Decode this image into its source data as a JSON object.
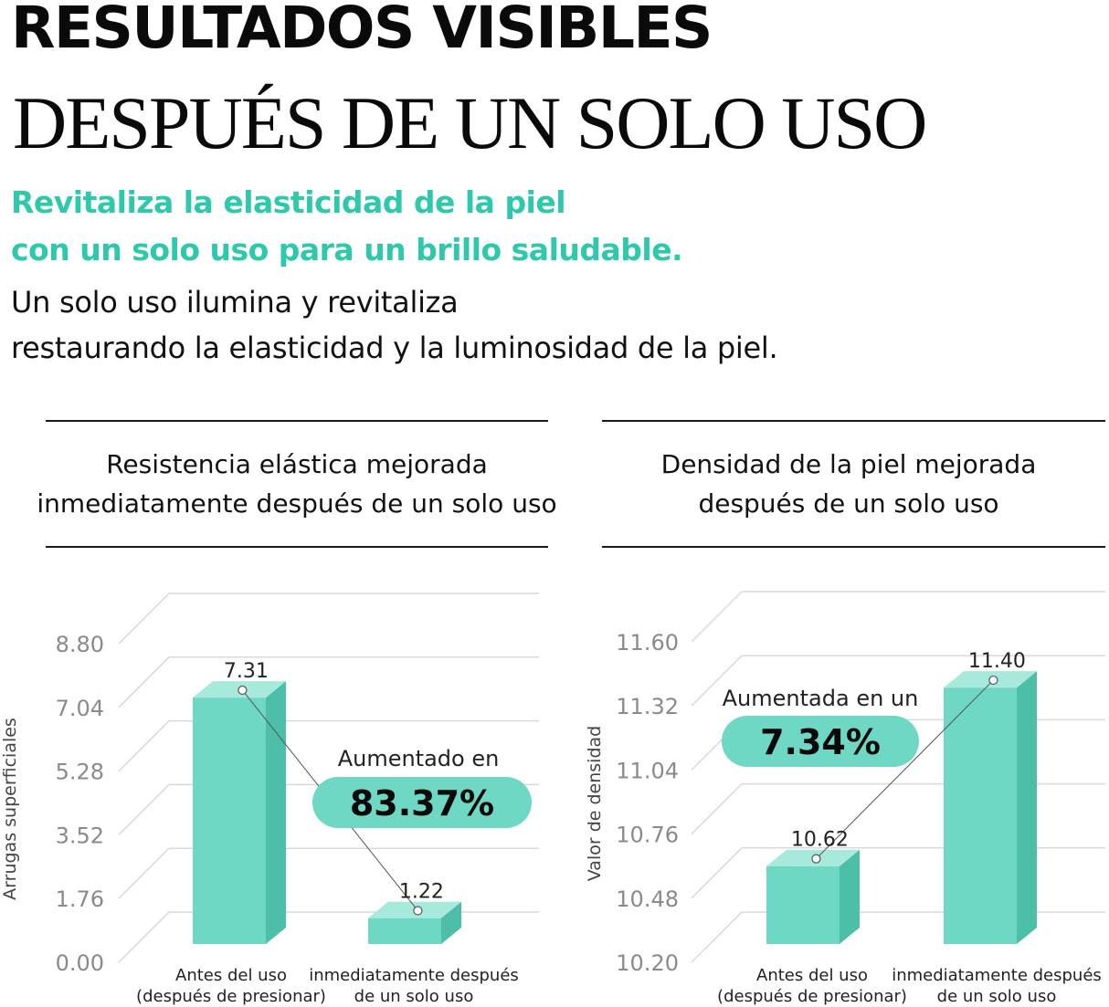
{
  "header": {
    "headline_line1": "RESULTADOS VISIBLES",
    "headline_line2": "DESPUÉS DE UN SOLO USO",
    "accent_line1": "Revitaliza la elasticidad de la piel",
    "accent_line2": "con un solo uso para un brillo saludable.",
    "body_line1": "Un solo uso ilumina y revitaliza",
    "body_line2": "restaurando la elasticidad y la luminosidad de la piel."
  },
  "colors": {
    "accent": "#2ec9aa",
    "bar_front": "#6ed8c4",
    "bar_side": "#4dbfa9",
    "bar_top": "#a7eadb",
    "badge": "#6ed8c4",
    "grid": "#d9d9d9",
    "axis_text": "#8a8a8a"
  },
  "chart_data": [
    {
      "type": "bar",
      "title_line1": "Resistencia elástica mejorada",
      "title_line2": "inmediatamente después de un solo uso",
      "ylabel": "Arrugas superficiales",
      "yticks": [
        "0.00",
        "1.76",
        "3.52",
        "5.28",
        "7.04",
        "8.80"
      ],
      "ylim": [
        0,
        8.8
      ],
      "categories": [
        {
          "line1": "Antes del uso",
          "line2": "(después de presionar)"
        },
        {
          "line1": "inmediatamente después",
          "line2": "de un solo uso"
        }
      ],
      "values": [
        7.31,
        1.22
      ],
      "value_labels": [
        "7.31",
        "1.22"
      ],
      "annotation_top": "Aumentado en",
      "annotation_value": "83.37%"
    },
    {
      "type": "bar",
      "title_line1": "Densidad de la piel mejorada",
      "title_line2": "después de un solo uso",
      "ylabel": "Valor de densidad",
      "yticks": [
        "10.20",
        "10.48",
        "10.76",
        "11.04",
        "11.32",
        "11.60"
      ],
      "ylim": [
        10.2,
        11.6
      ],
      "categories": [
        {
          "line1": "Antes del uso",
          "line2": "(después de presionar)"
        },
        {
          "line1": "inmediatamente después",
          "line2": "de un solo uso"
        }
      ],
      "values": [
        10.62,
        11.4
      ],
      "value_labels": [
        "10.62",
        "11.40"
      ],
      "annotation_top": "Aumentada en un",
      "annotation_value": "7.34%"
    }
  ]
}
